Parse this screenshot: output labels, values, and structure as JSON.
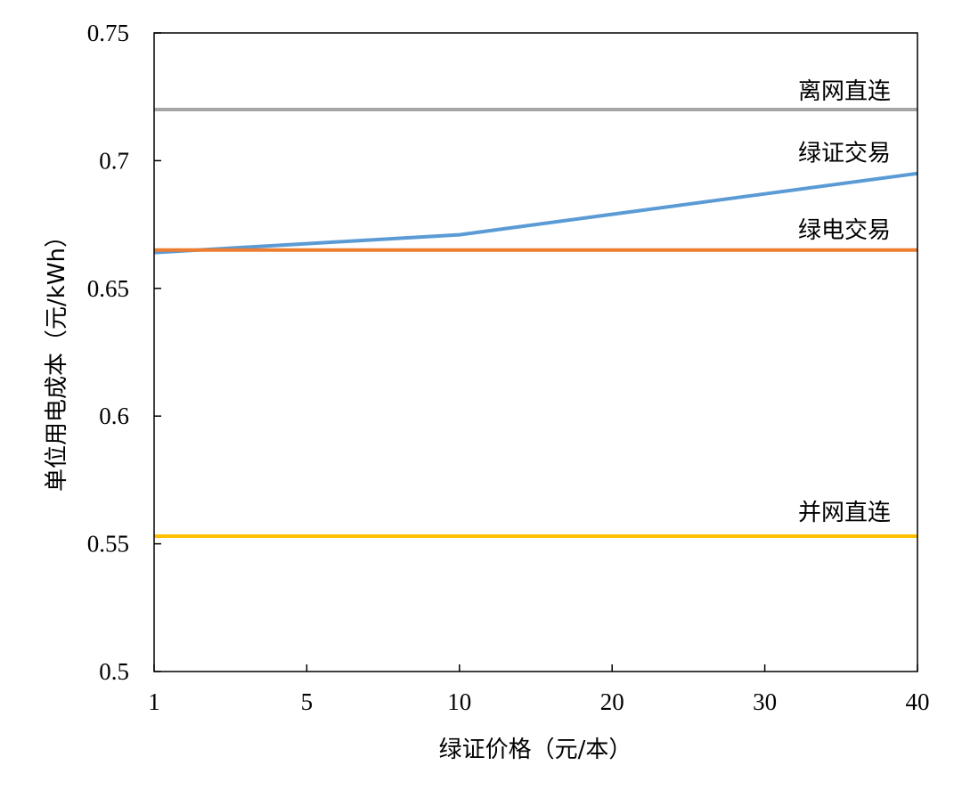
{
  "chart_data": {
    "type": "line",
    "title": "",
    "xlabel": "绿证价格（元/本）",
    "ylabel": "单位用电成本（元/kWh）",
    "categories": [
      "1",
      "5",
      "10",
      "20",
      "30",
      "40"
    ],
    "ylim": [
      0.5,
      0.75
    ],
    "yticks": [
      "0.5",
      "0.55",
      "0.6",
      "0.65",
      "0.7",
      "0.75"
    ],
    "grid": false,
    "legend": "none (series labeled inline at right end)",
    "series": [
      {
        "name": "离网直连",
        "color": "#A5A5A5",
        "values": [
          0.72,
          0.72,
          0.72,
          0.72,
          0.72,
          0.72
        ]
      },
      {
        "name": "绿证交易",
        "color": "#5B9BD5",
        "values": [
          0.664,
          0.6675,
          0.671,
          0.679,
          0.687,
          0.695
        ]
      },
      {
        "name": "绿电交易",
        "color": "#ED7D31",
        "values": [
          0.665,
          0.665,
          0.665,
          0.665,
          0.665,
          0.665
        ]
      },
      {
        "name": "并网直连",
        "color": "#FFC000",
        "values": [
          0.553,
          0.553,
          0.553,
          0.553,
          0.553,
          0.553
        ]
      }
    ]
  }
}
